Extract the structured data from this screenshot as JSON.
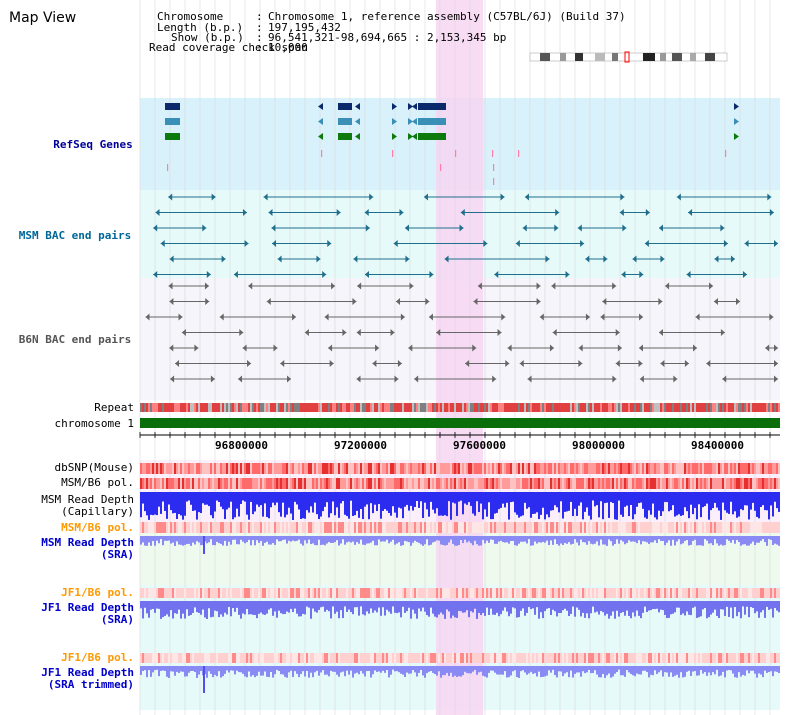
{
  "header": {
    "title": "Map View",
    "chromosome_label": "Chromosome",
    "chromosome_value": "Chromosome 1, reference assembly (C57BL/6J) (Build 37)",
    "length_label": "Length (b.p.)",
    "length_value": "197,195,432",
    "show_label": "Show (b.p.)",
    "show_value": "96,541,321-98,694,665 : 2,153,345 bp",
    "coverage_label": "Read coverage check span",
    "coverage_value": "10,000"
  },
  "tracks": {
    "refseq": "RefSeq Genes",
    "msm_bac": "MSM BAC end pairs",
    "b6n_bac": "B6N BAC end pairs",
    "repeat": "Repeat",
    "chromosome": "chromosome 1",
    "dbsnp": "dbSNP(Mouse)",
    "msm_b6_pol": "MSM/B6 pol.",
    "msm_read_depth_cap": "MSM Read Depth",
    "msm_read_depth_cap2": "(Capillary)",
    "msm_b6_pol2": "MSM/B6 pol.",
    "msm_read_depth_sra": "MSM Read Depth",
    "msm_read_depth_sra2": "(SRA)",
    "jf1_b6_pol": "JF1/B6 pol.",
    "jf1_read_depth": "JF1 Read Depth",
    "jf1_read_depth2": "(SRA)",
    "jf1_b6_pol2": "JF1/B6 pol.",
    "jf1_read_depth_trim": "JF1 Read Depth",
    "jf1_read_depth_trim2": "(SRA trimmed)"
  },
  "axis": {
    "ticks": [
      "96800000",
      "97200000",
      "97600000",
      "98000000",
      "98400000"
    ]
  },
  "colors": {
    "refseq_bg": "#dff3fb",
    "msm_bg": "#e8fbfb",
    "b6n_bg": "#f6f6fb",
    "highlight": "#f7d6f2",
    "refseq_label": "#000099",
    "msm_label": "#006699",
    "b6n_label": "#555555",
    "orange_label": "#ff9900",
    "blue_label": "#0000cc"
  }
}
